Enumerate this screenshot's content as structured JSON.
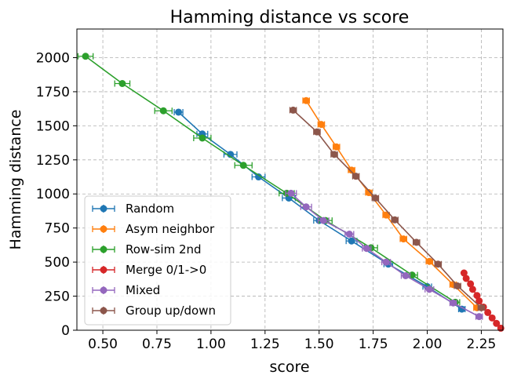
{
  "chart_data": {
    "type": "line",
    "title": "Hamming distance vs score",
    "xlabel": "score",
    "ylabel": "Hamming distance",
    "xlim": [
      0.38,
      2.35
    ],
    "ylim": [
      0,
      2210
    ],
    "xticks": [
      "0.50",
      "0.75",
      "1.00",
      "1.25",
      "1.50",
      "1.75",
      "2.00",
      "2.25"
    ],
    "yticks": [
      "0",
      "250",
      "500",
      "750",
      "1000",
      "1250",
      "1500",
      "1750",
      "2000"
    ],
    "grid": true,
    "legend_position": "lower-left",
    "series": [
      {
        "name": "Random",
        "color": "#1f77b4",
        "x": [
          0.85,
          0.96,
          1.09,
          1.22,
          1.36,
          1.5,
          1.65,
          1.82,
          2.0,
          2.16
        ],
        "y": [
          1600,
          1440,
          1290,
          1125,
          970,
          805,
          655,
          485,
          320,
          155
        ],
        "xerr": [
          0.02,
          0.025,
          0.03,
          0.03,
          0.03,
          0.025,
          0.025,
          0.02,
          0.02,
          0.015
        ]
      },
      {
        "name": "Asym neighbor",
        "color": "#ff7f0e",
        "x": [
          1.44,
          1.51,
          1.58,
          1.65,
          1.73,
          1.81,
          1.89,
          2.01,
          2.12,
          2.23
        ],
        "y": [
          1685,
          1510,
          1345,
          1175,
          1010,
          845,
          670,
          505,
          335,
          165
        ],
        "xerr": [
          0.015,
          0.015,
          0.015,
          0.015,
          0.015,
          0.015,
          0.015,
          0.015,
          0.015,
          0.015
        ]
      },
      {
        "name": "Row-sim 2nd",
        "color": "#2ca02c",
        "x": [
          0.42,
          0.59,
          0.78,
          0.96,
          1.15,
          1.35,
          1.53,
          1.74,
          1.93,
          2.13
        ],
        "y": [
          2010,
          1810,
          1610,
          1410,
          1210,
          1005,
          805,
          605,
          405,
          205
        ],
        "xerr": [
          0.035,
          0.035,
          0.04,
          0.04,
          0.04,
          0.035,
          0.03,
          0.03,
          0.025,
          0.02
        ]
      },
      {
        "name": "Merge 0/1->0",
        "color": "#d62728",
        "x": [
          2.17,
          2.18,
          2.2,
          2.21,
          2.23,
          2.24,
          2.26,
          2.28,
          2.3,
          2.32,
          2.34
        ],
        "y": [
          420,
          380,
          340,
          300,
          255,
          215,
          170,
          130,
          90,
          50,
          15
        ],
        "xerr": [
          0,
          0,
          0,
          0,
          0,
          0,
          0,
          0,
          0,
          0,
          0
        ]
      },
      {
        "name": "Mixed",
        "color": "#9467bd",
        "x": [
          1.37,
          1.44,
          1.52,
          1.64,
          1.72,
          1.81,
          1.9,
          2.01,
          2.12,
          2.24
        ],
        "y": [
          1005,
          905,
          805,
          705,
          600,
          500,
          400,
          300,
          200,
          100
        ],
        "xerr": [
          0.025,
          0.025,
          0.025,
          0.02,
          0.02,
          0.02,
          0.02,
          0.02,
          0.015,
          0.015
        ]
      },
      {
        "name": "Group up/down",
        "color": "#8c564b",
        "x": [
          1.38,
          1.49,
          1.57,
          1.67,
          1.76,
          1.85,
          1.95,
          2.05,
          2.14,
          2.25
        ],
        "y": [
          1615,
          1455,
          1290,
          1130,
          970,
          810,
          645,
          485,
          325,
          165
        ],
        "xerr": [
          0.015,
          0.015,
          0.015,
          0.015,
          0.015,
          0.015,
          0.015,
          0.015,
          0.015,
          0.015
        ]
      }
    ]
  }
}
